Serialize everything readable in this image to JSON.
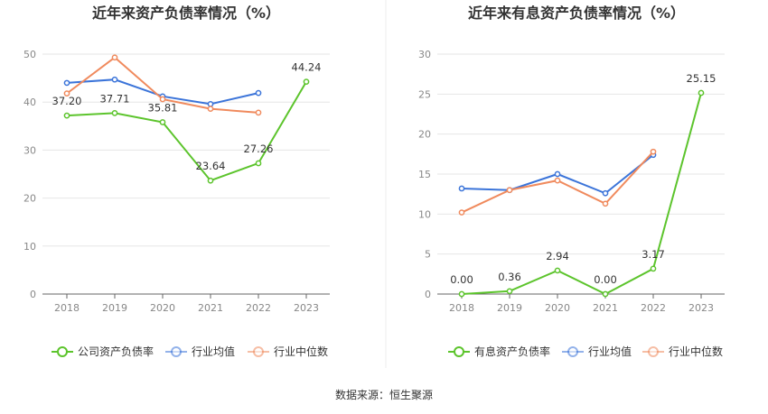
{
  "colors": {
    "company": "#5cc42c",
    "industry_avg": "#3b74d9",
    "industry_median": "#f08a5d",
    "grid": "#e6e6e6",
    "axis": "#666666"
  },
  "source": "数据来源：恒生聚源",
  "chart_data": [
    {
      "type": "line",
      "title": "近年来资产负债率情况（%）",
      "categories": [
        "2018",
        "2019",
        "2020",
        "2021",
        "2022",
        "2023"
      ],
      "ylim": [
        0,
        50
      ],
      "yticks": [
        0,
        10,
        20,
        30,
        40,
        50
      ],
      "grid": true,
      "legend_position": "bottom",
      "series": [
        {
          "name": "公司资产负债率",
          "key": "company",
          "values": [
            37.2,
            37.71,
            35.81,
            23.64,
            27.26,
            44.24
          ],
          "labels": [
            "37.20",
            "37.71",
            "35.81",
            "23.64",
            "27.26",
            "44.24"
          ]
        },
        {
          "name": "行业均值",
          "key": "industry_avg",
          "values": [
            44.0,
            44.7,
            41.2,
            39.6,
            41.9,
            null
          ]
        },
        {
          "name": "行业中位数",
          "key": "industry_median",
          "values": [
            41.8,
            49.3,
            40.6,
            38.6,
            37.8,
            null
          ]
        }
      ]
    },
    {
      "type": "line",
      "title": "近年来有息资产负债率情况（%）",
      "categories": [
        "2018",
        "2019",
        "2020",
        "2021",
        "2022",
        "2023"
      ],
      "ylim": [
        0,
        30
      ],
      "yticks": [
        0,
        5,
        10,
        15,
        20,
        25,
        30
      ],
      "grid": true,
      "legend_position": "bottom",
      "series": [
        {
          "name": "有息资产负债率",
          "key": "company",
          "values": [
            0.0,
            0.36,
            2.94,
            0.0,
            3.17,
            25.15
          ],
          "labels": [
            "0.00",
            "0.36",
            "2.94",
            "0.00",
            "3.17",
            "25.15"
          ]
        },
        {
          "name": "行业均值",
          "key": "industry_avg",
          "values": [
            13.2,
            13.0,
            15.0,
            12.6,
            17.4,
            null
          ]
        },
        {
          "name": "行业中位数",
          "key": "industry_median",
          "values": [
            10.2,
            13.0,
            14.2,
            11.3,
            17.8,
            null
          ]
        }
      ]
    }
  ]
}
